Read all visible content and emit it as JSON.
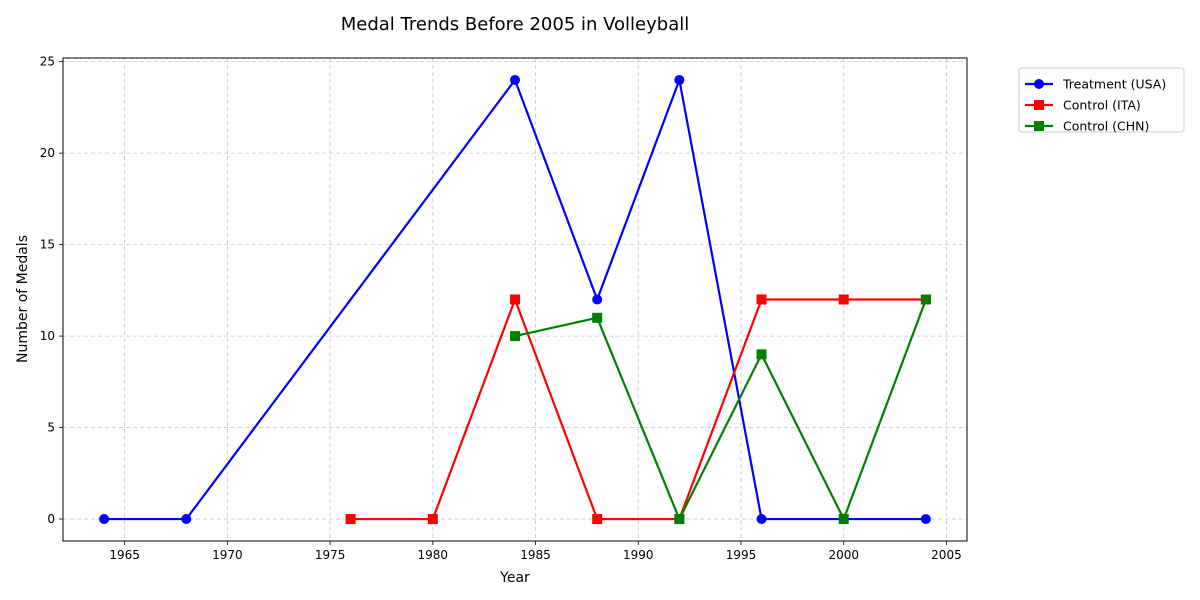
{
  "chart_data": {
    "type": "line",
    "title": "Medal Trends Before 2005 in Volleyball",
    "xlabel": "Year",
    "ylabel": "Number of Medals",
    "xlim": [
      1962,
      2006
    ],
    "ylim": [
      -1.2,
      25.2
    ],
    "xticks": [
      1965,
      1970,
      1975,
      1980,
      1985,
      1990,
      1995,
      2000,
      2005
    ],
    "yticks": [
      0,
      5,
      10,
      15,
      20,
      25
    ],
    "grid": true,
    "legend_position": "outside-top-right",
    "series": [
      {
        "name": "Treatment (USA)",
        "color": "#0000ff",
        "marker": "circle",
        "x": [
          1964,
          1968,
          1984,
          1988,
          1992,
          1996,
          2000,
          2004
        ],
        "y": [
          0,
          0,
          24,
          12,
          24,
          0,
          0,
          0
        ]
      },
      {
        "name": "Control (ITA)",
        "color": "#ff0000",
        "marker": "square",
        "x": [
          1976,
          1980,
          1984,
          1988,
          1992,
          1996,
          2000,
          2004
        ],
        "y": [
          0,
          0,
          12,
          0,
          0,
          12,
          12,
          12
        ]
      },
      {
        "name": "Control (CHN)",
        "color": "#008000",
        "marker": "square",
        "x": [
          1984,
          1988,
          1992,
          1996,
          2000,
          2004
        ],
        "y": [
          10,
          11,
          0,
          9,
          0,
          12
        ]
      }
    ]
  }
}
